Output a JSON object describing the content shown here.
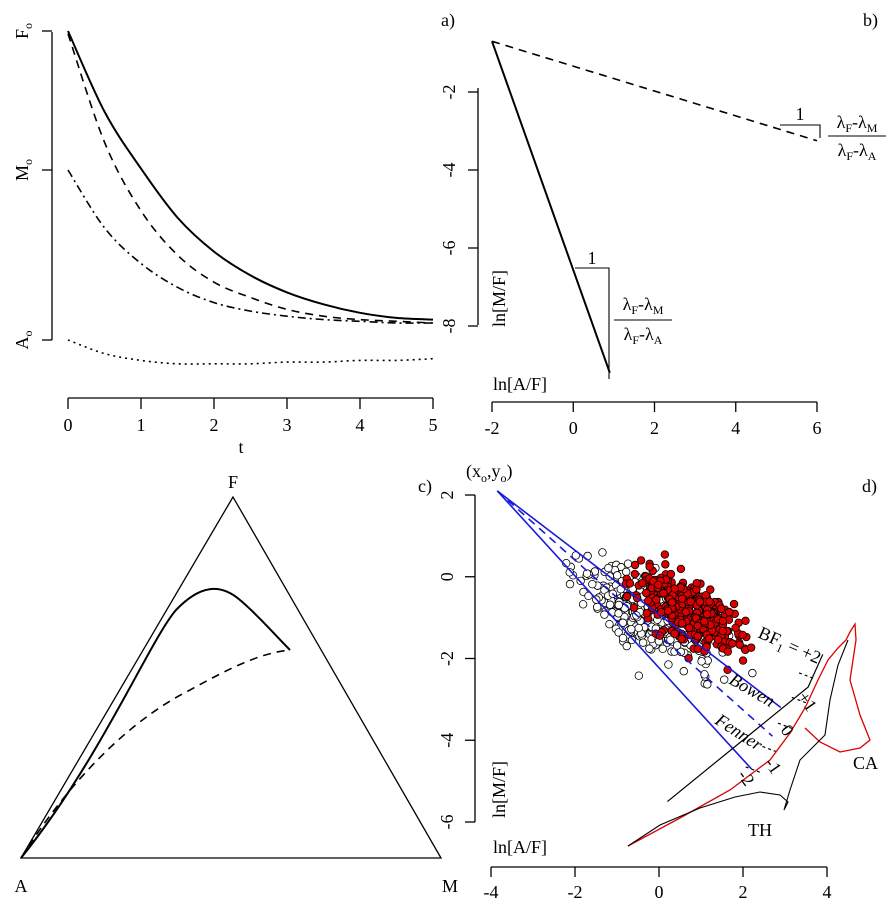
{
  "panel_labels": {
    "a": "a)",
    "b": "b)",
    "c": "c)",
    "d": "d)"
  },
  "chart_data": [
    {
      "panel": "a",
      "type": "line",
      "xlabel": "t",
      "ylabel": "",
      "xlim": [
        0,
        5
      ],
      "x_ticks": [
        "0",
        "1",
        "2",
        "3",
        "4",
        "5"
      ],
      "y_tick_labels": {
        "F": "F",
        "M": "M",
        "A": "A",
        "sub": "o"
      },
      "y_levels": {
        "A": 0,
        "M": 1,
        "F": 2
      },
      "series": [
        {
          "style": "solid",
          "x": [
            0,
            0.5,
            1,
            1.5,
            2,
            2.5,
            3,
            3.5,
            4,
            4.5,
            5
          ],
          "y": [
            2.0,
            1.42,
            1.01,
            0.72,
            0.52,
            0.38,
            0.28,
            0.21,
            0.16,
            0.13,
            0.12
          ]
        },
        {
          "style": "dashed",
          "x": [
            0,
            0.5,
            1,
            1.5,
            2,
            2.5,
            3,
            3.5,
            4,
            4.5,
            5
          ],
          "y": [
            1.98,
            1.2,
            0.76,
            0.5,
            0.34,
            0.25,
            0.18,
            0.14,
            0.12,
            0.11,
            0.1
          ]
        },
        {
          "style": "dashdot",
          "x": [
            0,
            0.5,
            1,
            1.5,
            2,
            2.5,
            3,
            3.5,
            4,
            4.5,
            5
          ],
          "y": [
            1.0,
            0.66,
            0.45,
            0.31,
            0.22,
            0.17,
            0.14,
            0.12,
            0.11,
            0.1,
            0.1
          ]
        },
        {
          "style": "dotted",
          "x": [
            0,
            0.5,
            1,
            1.5,
            2,
            2.5,
            3,
            3.5,
            4,
            4.5,
            5
          ],
          "y": [
            0.0,
            -0.08,
            -0.12,
            -0.14,
            -0.14,
            -0.14,
            -0.13,
            -0.13,
            -0.12,
            -0.12,
            -0.11
          ]
        }
      ]
    },
    {
      "panel": "b",
      "type": "line",
      "xlabel": "ln[A/F]",
      "ylabel": "ln[M/F]",
      "xlim": [
        -2,
        6
      ],
      "ylim": [
        -8.4,
        -0.6
      ],
      "x_ticks": [
        "-2",
        "0",
        "2",
        "4",
        "6"
      ],
      "y_ticks": [
        "-2",
        "-4",
        "-6",
        "-8"
      ],
      "series": [
        {
          "style": "solid",
          "x": [
            -2.0,
            0.9
          ],
          "y": [
            -0.7,
            -9.2
          ]
        },
        {
          "style": "dashed",
          "x": [
            -2.0,
            6.0
          ],
          "y": [
            -0.7,
            -3.25
          ]
        }
      ],
      "annotations": [
        {
          "text": "1",
          "frac": {
            "num": "λF-λM",
            "den": "λF-λA"
          }
        },
        {
          "text": "1",
          "frac": {
            "num": "λF-λM",
            "den": "λF-λA"
          }
        }
      ]
    },
    {
      "panel": "c",
      "type": "ternary",
      "vertices": {
        "top": "F",
        "left": "A",
        "right": "M"
      },
      "series": [
        {
          "style": "solid",
          "desc": "from A up to a maximum near F then to inner point"
        },
        {
          "style": "dashed",
          "desc": "from A curving to the same inner point"
        }
      ]
    },
    {
      "panel": "d",
      "type": "scatter",
      "xlabel": "ln[A/F]",
      "ylabel": "ln[M/F]",
      "xlim": [
        -4,
        4
      ],
      "ylim": [
        -6,
        2
      ],
      "x_ticks": [
        "-4",
        "-2",
        "0",
        "2",
        "4"
      ],
      "y_ticks": [
        "2",
        "0",
        "-2",
        "-4",
        "-6"
      ],
      "origin_label": "(x",
      "origin_sub": "o",
      "origin_mid": ",y",
      "origin_end": ")",
      "bf_label": "BF",
      "bf_sub": "1",
      "bf_eq": " = +2",
      "bf_ticks": [
        "+1",
        "0",
        "-1",
        "-2"
      ],
      "line_labels": [
        "Bowen",
        "Fenner"
      ],
      "density_labels": [
        "CA",
        "TH"
      ],
      "colors": {
        "CA": "#dd0000",
        "TH": "#000000",
        "lines": "#1a1adc"
      },
      "series": [
        {
          "name": "CA",
          "n": 380,
          "center": [
            0.7,
            -0.8
          ],
          "spread": [
            0.6,
            0.5
          ]
        },
        {
          "name": "TH",
          "n": 430,
          "center": [
            -0.3,
            -0.9
          ],
          "spread": [
            0.8,
            0.5
          ]
        }
      ]
    }
  ]
}
